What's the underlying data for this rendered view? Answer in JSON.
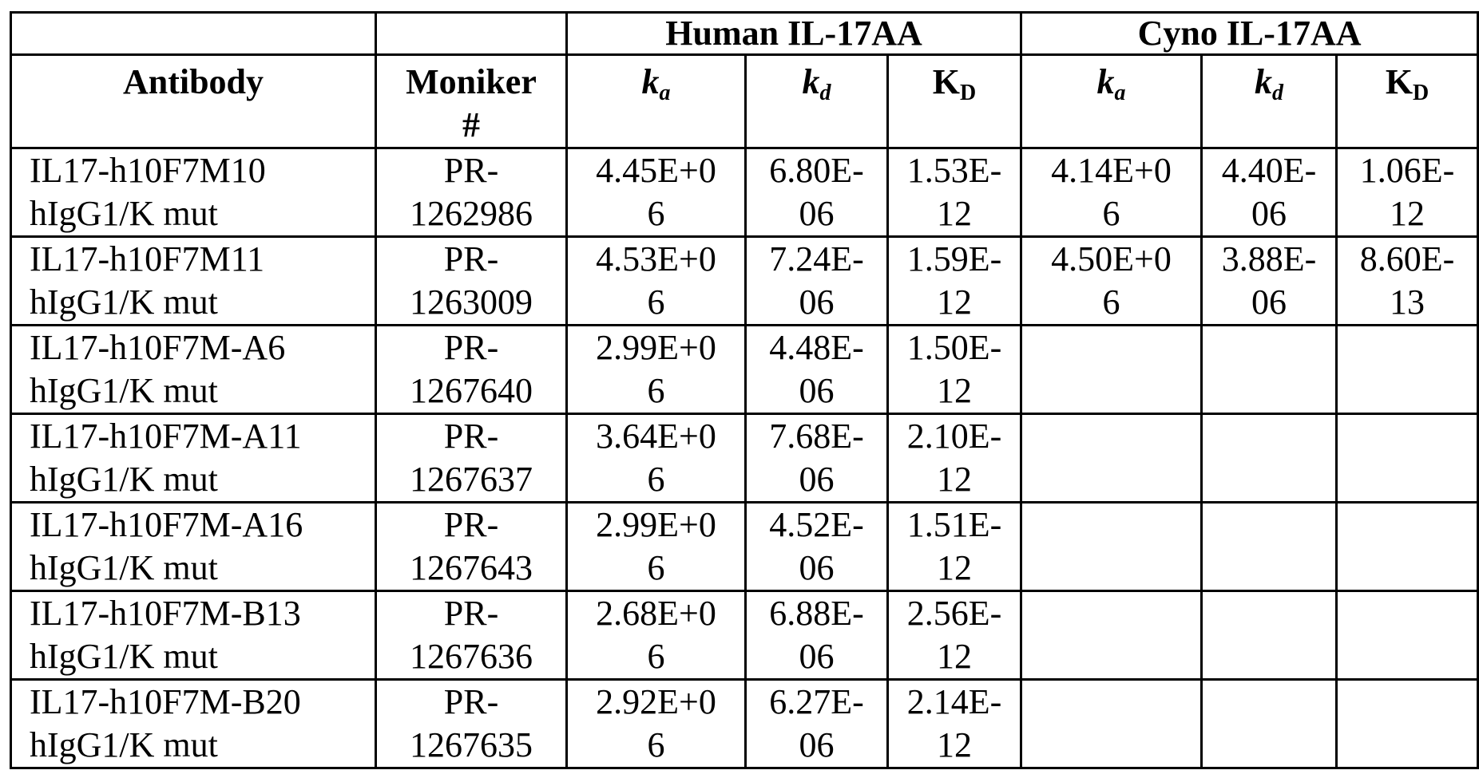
{
  "table": {
    "groups": [
      "Human IL-17AA",
      "Cyno IL-17AA"
    ],
    "headers": {
      "antibody": "Antibody",
      "moniker": "Moniker #",
      "measures": [
        {
          "main": "k",
          "sub": "a",
          "italic": true
        },
        {
          "main": "k",
          "sub": "d",
          "italic": true
        },
        {
          "main": "K",
          "sub": "D",
          "italic": false
        }
      ]
    },
    "rows": [
      {
        "antibody": "IL17-h10F7M10 hIgG1/K mut",
        "moniker": "PR-1262986",
        "values": [
          "4.45E+06",
          "6.80E-06",
          "1.53E-12",
          "4.14E+06",
          "4.40E-06",
          "1.06E-12"
        ]
      },
      {
        "antibody": "IL17-h10F7M11 hIgG1/K mut",
        "moniker": "PR-1263009",
        "values": [
          "4.53E+06",
          "7.24E-06",
          "1.59E-12",
          "4.50E+06",
          "3.88E-06",
          "8.60E-13"
        ]
      },
      {
        "antibody": "IL17-h10F7M-A6 hIgG1/K mut",
        "moniker": "PR-1267640",
        "values": [
          "2.99E+06",
          "4.48E-06",
          "1.50E-12"
        ]
      },
      {
        "antibody": "IL17-h10F7M-A11 hIgG1/K mut",
        "moniker": "PR-1267637",
        "values": [
          "3.64E+06",
          "7.68E-06",
          "2.10E-12"
        ]
      },
      {
        "antibody": "IL17-h10F7M-A16 hIgG1/K mut",
        "moniker": "PR-1267643",
        "values": [
          "2.99E+06",
          "4.52E-06",
          "1.51E-12"
        ]
      },
      {
        "antibody": "IL17-h10F7M-B13 hIgG1/K mut",
        "moniker": "PR-1267636",
        "values": [
          "2.68E+06",
          "6.88E-06",
          "2.56E-12"
        ]
      },
      {
        "antibody": "IL17-h10F7M-B20 hIgG1/K mut",
        "moniker": "PR-1267635",
        "values": [
          "2.92E+06",
          "6.27E-06",
          "2.14E-12"
        ]
      }
    ]
  }
}
